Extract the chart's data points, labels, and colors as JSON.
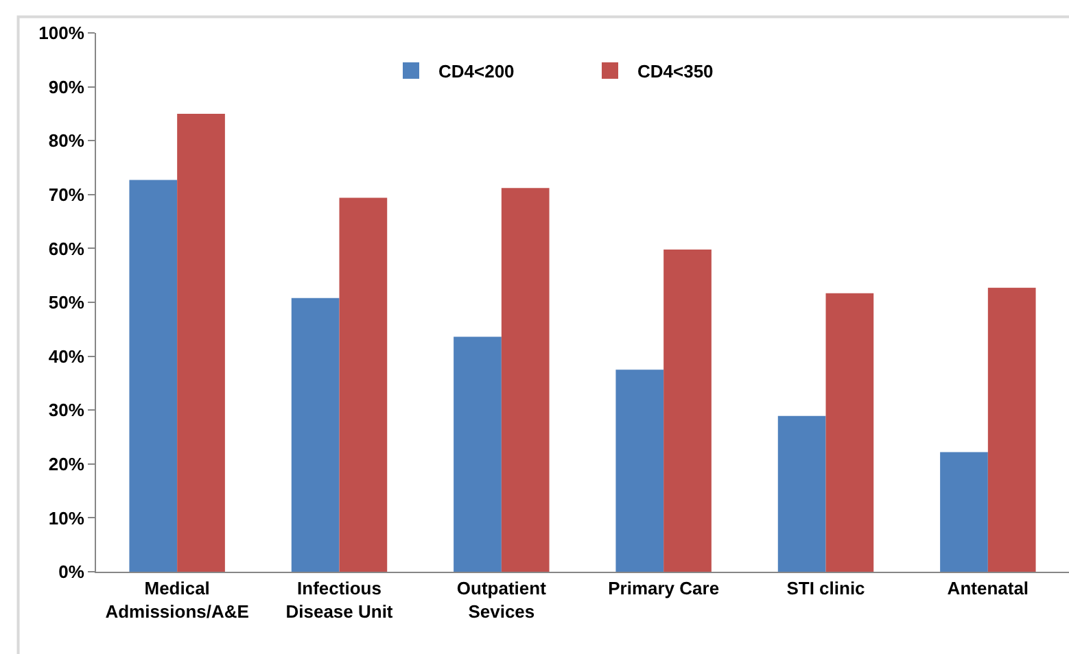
{
  "chart_data": {
    "type": "bar",
    "categories": [
      "Medical Admissions/A&E",
      "Infectious Disease Unit",
      "Outpatient Sevices",
      "Primary Care",
      "STI clinic",
      "Antenatal"
    ],
    "series": [
      {
        "name": "CD4<200",
        "color": "#4f81bd",
        "values": [
          72.7,
          50.8,
          43.6,
          37.5,
          28.9,
          22.2
        ]
      },
      {
        "name": "CD4<350",
        "color": "#c0504d",
        "values": [
          85.0,
          69.4,
          71.2,
          59.8,
          51.7,
          52.7
        ]
      }
    ],
    "ylim": [
      0,
      100
    ],
    "yticks": [
      {
        "value": 0,
        "label": "0%"
      },
      {
        "value": 10,
        "label": "10%"
      },
      {
        "value": 20,
        "label": "20%"
      },
      {
        "value": 30,
        "label": "30%"
      },
      {
        "value": 40,
        "label": "40%"
      },
      {
        "value": 50,
        "label": "50%"
      },
      {
        "value": 60,
        "label": "60%"
      },
      {
        "value": 70,
        "label": "70%"
      },
      {
        "value": 80,
        "label": "80%"
      },
      {
        "value": 90,
        "label": "90%"
      },
      {
        "value": 100,
        "label": "100%"
      }
    ],
    "legend": "top",
    "grid": false
  }
}
